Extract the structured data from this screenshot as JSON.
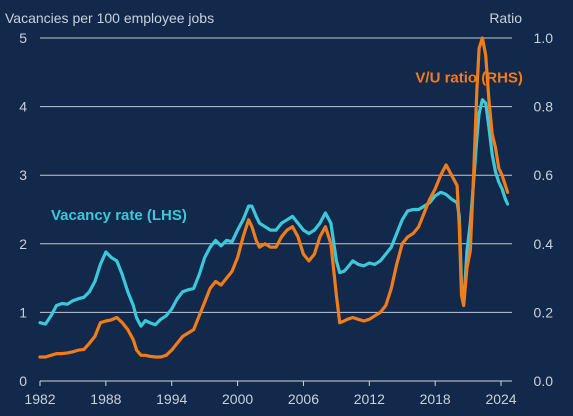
{
  "chart_data": {
    "type": "line",
    "left_axis_title": "Vacancies per 100 employee jobs",
    "right_axis_title": "Ratio",
    "x_ticks": [
      1982,
      1988,
      1994,
      2000,
      2006,
      2012,
      2018,
      2024
    ],
    "xlim": [
      1982,
      2025
    ],
    "left_ylim": [
      0,
      5
    ],
    "left_yticks": [
      0,
      1,
      2,
      3,
      4,
      5
    ],
    "right_ylim": [
      0.0,
      1.0
    ],
    "right_yticks": [
      "0.0",
      "0.2",
      "0.4",
      "0.6",
      "0.8",
      "1.0"
    ],
    "grid": "horizontal",
    "series": [
      {
        "name": "Vacancy rate (LHS)",
        "axis": "left",
        "color": "#3cc8d8",
        "points": [
          [
            1982.0,
            0.85
          ],
          [
            1982.5,
            0.83
          ],
          [
            1983.0,
            0.95
          ],
          [
            1983.5,
            1.1
          ],
          [
            1984.0,
            1.13
          ],
          [
            1984.5,
            1.12
          ],
          [
            1985.0,
            1.17
          ],
          [
            1985.5,
            1.2
          ],
          [
            1986.0,
            1.22
          ],
          [
            1986.5,
            1.3
          ],
          [
            1987.0,
            1.45
          ],
          [
            1987.5,
            1.7
          ],
          [
            1988.0,
            1.88
          ],
          [
            1988.5,
            1.8
          ],
          [
            1989.0,
            1.75
          ],
          [
            1989.5,
            1.55
          ],
          [
            1990.0,
            1.3
          ],
          [
            1990.5,
            1.1
          ],
          [
            1990.8,
            0.92
          ],
          [
            1991.2,
            0.8
          ],
          [
            1991.6,
            0.88
          ],
          [
            1992.0,
            0.85
          ],
          [
            1992.5,
            0.82
          ],
          [
            1993.0,
            0.9
          ],
          [
            1993.5,
            0.95
          ],
          [
            1994.0,
            1.05
          ],
          [
            1994.5,
            1.2
          ],
          [
            1995.0,
            1.3
          ],
          [
            1995.5,
            1.33
          ],
          [
            1996.0,
            1.35
          ],
          [
            1996.5,
            1.55
          ],
          [
            1997.0,
            1.8
          ],
          [
            1997.5,
            1.95
          ],
          [
            1998.0,
            2.05
          ],
          [
            1998.5,
            1.97
          ],
          [
            1999.0,
            2.05
          ],
          [
            1999.5,
            2.03
          ],
          [
            2000.0,
            2.2
          ],
          [
            2000.5,
            2.35
          ],
          [
            2001.0,
            2.55
          ],
          [
            2001.3,
            2.55
          ],
          [
            2001.7,
            2.4
          ],
          [
            2002.0,
            2.3
          ],
          [
            2002.5,
            2.25
          ],
          [
            2003.0,
            2.2
          ],
          [
            2003.5,
            2.2
          ],
          [
            2004.0,
            2.3
          ],
          [
            2004.5,
            2.35
          ],
          [
            2005.0,
            2.4
          ],
          [
            2005.5,
            2.3
          ],
          [
            2006.0,
            2.2
          ],
          [
            2006.5,
            2.15
          ],
          [
            2007.0,
            2.2
          ],
          [
            2007.5,
            2.3
          ],
          [
            2008.0,
            2.45
          ],
          [
            2008.5,
            2.3
          ],
          [
            2009.0,
            1.75
          ],
          [
            2009.3,
            1.58
          ],
          [
            2009.7,
            1.6
          ],
          [
            2010.0,
            1.65
          ],
          [
            2010.5,
            1.75
          ],
          [
            2011.0,
            1.7
          ],
          [
            2011.5,
            1.68
          ],
          [
            2012.0,
            1.72
          ],
          [
            2012.5,
            1.7
          ],
          [
            2013.0,
            1.75
          ],
          [
            2013.5,
            1.85
          ],
          [
            2014.0,
            1.95
          ],
          [
            2014.5,
            2.15
          ],
          [
            2015.0,
            2.35
          ],
          [
            2015.5,
            2.48
          ],
          [
            2016.0,
            2.5
          ],
          [
            2016.5,
            2.5
          ],
          [
            2017.0,
            2.55
          ],
          [
            2017.5,
            2.6
          ],
          [
            2018.0,
            2.7
          ],
          [
            2018.5,
            2.75
          ],
          [
            2019.0,
            2.72
          ],
          [
            2019.5,
            2.65
          ],
          [
            2020.0,
            2.6
          ],
          [
            2020.2,
            2.4
          ],
          [
            2020.4,
            1.4
          ],
          [
            2020.6,
            1.12
          ],
          [
            2020.9,
            1.9
          ],
          [
            2021.2,
            2.3
          ],
          [
            2021.5,
            2.9
          ],
          [
            2021.8,
            3.55
          ],
          [
            2022.0,
            3.9
          ],
          [
            2022.3,
            4.1
          ],
          [
            2022.6,
            4.05
          ],
          [
            2022.9,
            3.7
          ],
          [
            2023.2,
            3.3
          ],
          [
            2023.5,
            3.05
          ],
          [
            2023.8,
            2.9
          ],
          [
            2024.1,
            2.8
          ],
          [
            2024.4,
            2.65
          ],
          [
            2024.6,
            2.58
          ]
        ]
      },
      {
        "name": "V/U ratio (RHS)",
        "axis": "right",
        "color": "#f07c1a",
        "points": [
          [
            1982.0,
            0.07
          ],
          [
            1982.5,
            0.07
          ],
          [
            1983.0,
            0.075
          ],
          [
            1983.5,
            0.08
          ],
          [
            1984.0,
            0.08
          ],
          [
            1984.5,
            0.082
          ],
          [
            1985.0,
            0.085
          ],
          [
            1985.5,
            0.09
          ],
          [
            1986.0,
            0.092
          ],
          [
            1986.5,
            0.11
          ],
          [
            1987.0,
            0.13
          ],
          [
            1987.5,
            0.17
          ],
          [
            1988.0,
            0.175
          ],
          [
            1988.5,
            0.178
          ],
          [
            1989.0,
            0.185
          ],
          [
            1989.5,
            0.17
          ],
          [
            1990.0,
            0.15
          ],
          [
            1990.5,
            0.12
          ],
          [
            1990.8,
            0.09
          ],
          [
            1991.2,
            0.075
          ],
          [
            1991.6,
            0.075
          ],
          [
            1992.0,
            0.072
          ],
          [
            1992.5,
            0.07
          ],
          [
            1993.0,
            0.07
          ],
          [
            1993.5,
            0.075
          ],
          [
            1994.0,
            0.09
          ],
          [
            1994.5,
            0.11
          ],
          [
            1995.0,
            0.13
          ],
          [
            1995.5,
            0.14
          ],
          [
            1996.0,
            0.15
          ],
          [
            1996.5,
            0.19
          ],
          [
            1997.0,
            0.23
          ],
          [
            1997.5,
            0.27
          ],
          [
            1998.0,
            0.29
          ],
          [
            1998.5,
            0.28
          ],
          [
            1999.0,
            0.3
          ],
          [
            1999.5,
            0.32
          ],
          [
            2000.0,
            0.36
          ],
          [
            2000.5,
            0.42
          ],
          [
            2001.0,
            0.47
          ],
          [
            2001.3,
            0.45
          ],
          [
            2001.7,
            0.41
          ],
          [
            2002.0,
            0.39
          ],
          [
            2002.5,
            0.4
          ],
          [
            2003.0,
            0.39
          ],
          [
            2003.5,
            0.39
          ],
          [
            2004.0,
            0.42
          ],
          [
            2004.5,
            0.44
          ],
          [
            2005.0,
            0.45
          ],
          [
            2005.5,
            0.42
          ],
          [
            2006.0,
            0.37
          ],
          [
            2006.5,
            0.35
          ],
          [
            2007.0,
            0.37
          ],
          [
            2007.5,
            0.42
          ],
          [
            2008.0,
            0.45
          ],
          [
            2008.5,
            0.4
          ],
          [
            2009.0,
            0.25
          ],
          [
            2009.3,
            0.17
          ],
          [
            2009.7,
            0.175
          ],
          [
            2010.0,
            0.18
          ],
          [
            2010.5,
            0.185
          ],
          [
            2011.0,
            0.18
          ],
          [
            2011.5,
            0.175
          ],
          [
            2012.0,
            0.18
          ],
          [
            2012.5,
            0.19
          ],
          [
            2013.0,
            0.2
          ],
          [
            2013.5,
            0.22
          ],
          [
            2014.0,
            0.27
          ],
          [
            2014.5,
            0.34
          ],
          [
            2015.0,
            0.4
          ],
          [
            2015.5,
            0.42
          ],
          [
            2016.0,
            0.43
          ],
          [
            2016.5,
            0.45
          ],
          [
            2017.0,
            0.49
          ],
          [
            2017.5,
            0.53
          ],
          [
            2018.0,
            0.56
          ],
          [
            2018.5,
            0.6
          ],
          [
            2019.0,
            0.63
          ],
          [
            2019.5,
            0.6
          ],
          [
            2020.0,
            0.57
          ],
          [
            2020.2,
            0.45
          ],
          [
            2020.4,
            0.25
          ],
          [
            2020.6,
            0.22
          ],
          [
            2020.9,
            0.33
          ],
          [
            2021.2,
            0.38
          ],
          [
            2021.5,
            0.6
          ],
          [
            2021.8,
            0.85
          ],
          [
            2022.0,
            0.97
          ],
          [
            2022.3,
            1.0
          ],
          [
            2022.6,
            0.95
          ],
          [
            2022.9,
            0.82
          ],
          [
            2023.2,
            0.72
          ],
          [
            2023.5,
            0.68
          ],
          [
            2023.8,
            0.62
          ],
          [
            2024.1,
            0.6
          ],
          [
            2024.4,
            0.57
          ],
          [
            2024.6,
            0.55
          ]
        ]
      }
    ],
    "series_labels": [
      {
        "text": "V/U ratio (RHS)",
        "color": "#f07c1a",
        "at": [
          2016.2,
          4.35
        ]
      },
      {
        "text": "Vacancy rate (LHS)",
        "color": "#3cc8d8",
        "at": [
          1983.0,
          2.35
        ]
      }
    ]
  }
}
